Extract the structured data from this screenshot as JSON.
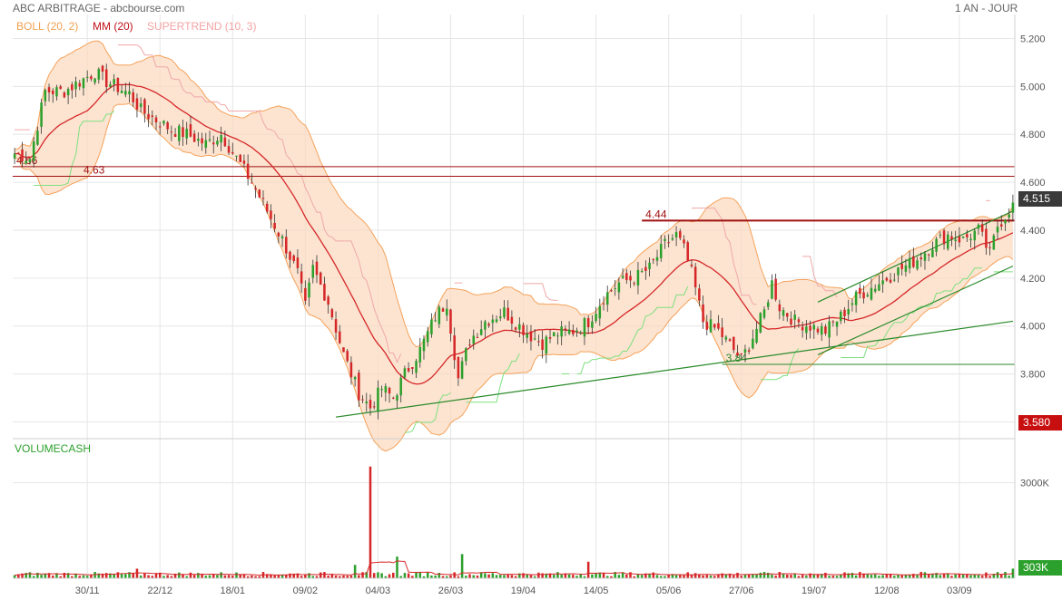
{
  "header": {
    "title": "ABC ARBITRAGE - abcbourse.com",
    "period": "1 AN - JOUR"
  },
  "legend": {
    "boll": "BOLL (20, 2)",
    "mm": "MM (20)",
    "supertrend": "SUPERTREND (10, 3)",
    "volume": "VOLUMECASH"
  },
  "colors": {
    "up": "#2ca02c",
    "down": "#d62728",
    "boll_fill": "#fbd9bd",
    "boll_line": "#f5a25a",
    "mm": "#d62728",
    "supertrend_bull": "#7ee07e",
    "supertrend_bear": "#f0a8a8",
    "resistance": "#a01010",
    "trend": "#2a8a2a"
  },
  "price_labels": {
    "last": "4.515",
    "low_tag": "3.580",
    "volume_last": "303K",
    "volume_tick": "3000K"
  },
  "annotations": {
    "r1": "4.66",
    "r2": "4.63",
    "r3": "4.44",
    "s1": "3.84"
  },
  "chart_data": {
    "type": "candlestick",
    "title": "ABC ARBITRAGE - abcbourse.com",
    "period": "1 AN - JOUR",
    "price_axis": {
      "ticks": [
        "3.600",
        "3.800",
        "4.000",
        "4.200",
        "4.400",
        "4.600",
        "4.800",
        "5.000",
        "5.200"
      ],
      "range": [
        3.53,
        5.3
      ]
    },
    "volume_axis": {
      "ticks": [
        "3000K"
      ],
      "range": [
        0,
        4300
      ]
    },
    "x_ticks": [
      "30/11",
      "22/12",
      "18/01",
      "09/02",
      "04/03",
      "26/03",
      "19/04",
      "14/05",
      "05/06",
      "27/06",
      "19/07",
      "12/08",
      "03/09"
    ],
    "x_tick_index": [
      19,
      38,
      57,
      76,
      95,
      114,
      133,
      152,
      171,
      190,
      209,
      228,
      247
    ],
    "n_sessions": 262,
    "close_anchors": [
      [
        0,
        4.72
      ],
      [
        4,
        4.7
      ],
      [
        8,
        4.98
      ],
      [
        13,
        4.98
      ],
      [
        18,
        5.03
      ],
      [
        21,
        5.06
      ],
      [
        24,
        5.02
      ],
      [
        30,
        4.97
      ],
      [
        33,
        4.9
      ],
      [
        37,
        4.86
      ],
      [
        41,
        4.82
      ],
      [
        45,
        4.8
      ],
      [
        50,
        4.76
      ],
      [
        54,
        4.8
      ],
      [
        58,
        4.7
      ],
      [
        62,
        4.6
      ],
      [
        66,
        4.48
      ],
      [
        70,
        4.36
      ],
      [
        74,
        4.22
      ],
      [
        76,
        4.08
      ],
      [
        78,
        4.24
      ],
      [
        82,
        4.1
      ],
      [
        86,
        3.88
      ],
      [
        90,
        3.72
      ],
      [
        93,
        3.66
      ],
      [
        96,
        3.74
      ],
      [
        99,
        3.7
      ],
      [
        102,
        3.8
      ],
      [
        106,
        3.9
      ],
      [
        110,
        4.04
      ],
      [
        113,
        4.1
      ],
      [
        116,
        3.78
      ],
      [
        119,
        3.94
      ],
      [
        123,
        4.02
      ],
      [
        128,
        4.06
      ],
      [
        132,
        4.0
      ],
      [
        135,
        3.96
      ],
      [
        138,
        3.93
      ],
      [
        142,
        3.97
      ],
      [
        146,
        3.98
      ],
      [
        150,
        4.02
      ],
      [
        154,
        4.12
      ],
      [
        158,
        4.18
      ],
      [
        162,
        4.2
      ],
      [
        166,
        4.24
      ],
      [
        170,
        4.34
      ],
      [
        173,
        4.38
      ],
      [
        175,
        4.32
      ],
      [
        177,
        4.22
      ],
      [
        180,
        4.02
      ],
      [
        184,
        3.98
      ],
      [
        188,
        3.9
      ],
      [
        190,
        3.86
      ],
      [
        192,
        3.92
      ],
      [
        196,
        4.06
      ],
      [
        198,
        4.18
      ],
      [
        200,
        4.08
      ],
      [
        204,
        4.02
      ],
      [
        208,
        4.0
      ],
      [
        212,
        3.98
      ],
      [
        216,
        4.04
      ],
      [
        220,
        4.12
      ],
      [
        224,
        4.16
      ],
      [
        228,
        4.2
      ],
      [
        232,
        4.24
      ],
      [
        236,
        4.28
      ],
      [
        240,
        4.34
      ],
      [
        244,
        4.38
      ],
      [
        248,
        4.36
      ],
      [
        252,
        4.4
      ],
      [
        255,
        4.3
      ],
      [
        257,
        4.42
      ],
      [
        259,
        4.46
      ],
      [
        261,
        4.515
      ]
    ],
    "volume_spikes": [
      [
        93,
        3510
      ],
      [
        89,
        420
      ],
      [
        117,
        760
      ],
      [
        150,
        520
      ],
      [
        100,
        680
      ],
      [
        32,
        300
      ]
    ],
    "indicators": [
      {
        "name": "BOLL (20, 2)",
        "type": "band"
      },
      {
        "name": "MM (20)",
        "type": "line"
      },
      {
        "name": "SUPERTREND (10, 3)",
        "type": "line"
      },
      {
        "name": "VOLUMECASH",
        "type": "bar"
      }
    ],
    "levels": [
      {
        "label": "4.66",
        "price": 4.665
      },
      {
        "label": "4.63",
        "price": 4.625
      },
      {
        "label": "4.44",
        "price": 4.44
      },
      {
        "label": "3.84",
        "price": 3.84
      }
    ],
    "last_price": 4.515
  }
}
